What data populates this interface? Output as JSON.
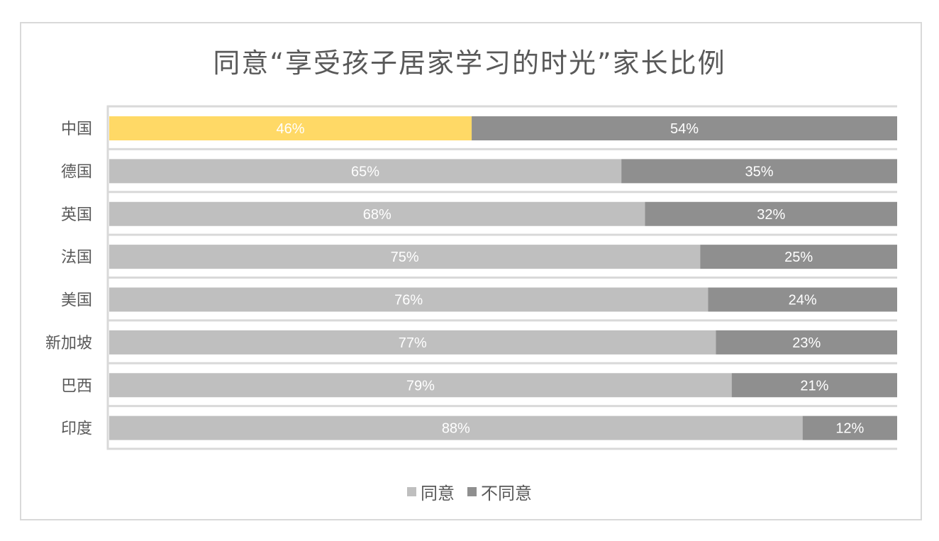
{
  "chart_data": {
    "type": "bar",
    "orientation": "horizontal",
    "stacked": "percent",
    "title": "同意“享受孩子居家学习的时光”家长比例",
    "categories": [
      "中国",
      "德国",
      "英国",
      "法国",
      "美国",
      "新加坡",
      "巴西",
      "印度"
    ],
    "series": [
      {
        "name": "同意",
        "values": [
          46,
          65,
          68,
          75,
          76,
          77,
          79,
          88
        ],
        "color": "#bfbfbf"
      },
      {
        "name": "不同意",
        "values": [
          54,
          35,
          32,
          25,
          24,
          23,
          21,
          12
        ],
        "color": "#8f8f8f"
      }
    ],
    "highlight": {
      "category": "中国",
      "series": "同意",
      "color": "#ffd966"
    },
    "data_labels": {
      "format": "percent",
      "color": "#ffffff"
    },
    "xlim": [
      0,
      100
    ],
    "grid": true,
    "legend": "bottom"
  }
}
